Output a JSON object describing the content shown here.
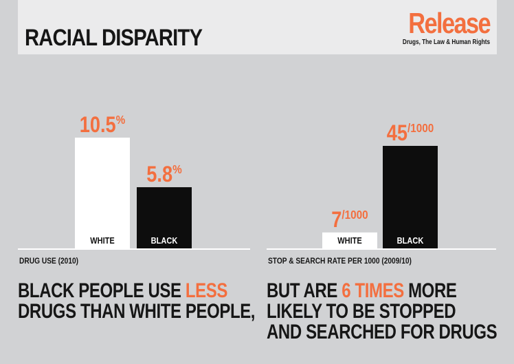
{
  "header": {
    "title": "RACIAL DISPARITY",
    "logo": "Release",
    "logo_tagline": "Drugs, The Law & Human Rights"
  },
  "colors": {
    "accent": "#f36f3f",
    "black": "#0d0d0d",
    "white": "#ffffff",
    "background": "#d1d2d4"
  },
  "chart_data": [
    {
      "type": "bar",
      "xlabel": "DRUG USE (2010)",
      "categories": [
        "WHITE",
        "BLACK"
      ],
      "values": [
        10.5,
        5.8
      ],
      "value_labels": [
        {
          "number": "10.5",
          "unit": "%"
        },
        {
          "number": "5.8",
          "unit": "%"
        }
      ],
      "bar_colors": [
        "#ffffff",
        "#0d0d0d"
      ],
      "ylim": [
        0,
        12
      ]
    },
    {
      "type": "bar",
      "xlabel": "STOP & SEARCH RATE PER 1000 (2009/10)",
      "categories": [
        "WHITE",
        "BLACK"
      ],
      "values": [
        7,
        45
      ],
      "value_labels": [
        {
          "number": "7",
          "unit": "/1000"
        },
        {
          "number": "45",
          "unit": "/1000"
        }
      ],
      "bar_colors": [
        "#ffffff",
        "#0d0d0d"
      ],
      "ylim": [
        0,
        54
      ]
    }
  ],
  "statements": {
    "left": {
      "line1_prefix": "BLACK PEOPLE USE ",
      "line1_highlight": "LESS",
      "line2": "DRUGS THAN WHITE PEOPLE,"
    },
    "right": {
      "line1_prefix": "BUT ARE ",
      "line1_highlight": "6 TIMES",
      "line1_suffix": " MORE",
      "line2": "LIKELY TO BE STOPPED",
      "line3": "AND SEARCHED FOR DRUGS"
    }
  }
}
